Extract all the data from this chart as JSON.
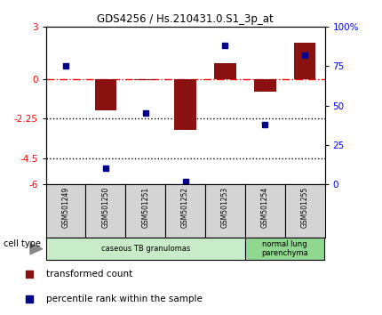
{
  "title": "GDS4256 / Hs.210431.0.S1_3p_at",
  "samples": [
    "GSM501249",
    "GSM501250",
    "GSM501251",
    "GSM501252",
    "GSM501253",
    "GSM501254",
    "GSM501255"
  ],
  "transformed_count": [
    0.02,
    -1.8,
    -0.05,
    -2.9,
    0.9,
    -0.7,
    2.1
  ],
  "percentile_rank": [
    75,
    10,
    45,
    2,
    88,
    38,
    82
  ],
  "ylim_left": [
    -6,
    3
  ],
  "ylim_right": [
    0,
    100
  ],
  "yticks_left": [
    3,
    0,
    -2.25,
    -4.5,
    -6
  ],
  "ytick_labels_left": [
    "3",
    "0",
    "-2.25",
    "-4.5",
    "-6"
  ],
  "yticks_right": [
    100,
    75,
    50,
    25,
    0
  ],
  "ytick_labels_right": [
    "100%",
    "75",
    "50",
    "25",
    "0"
  ],
  "dotted_lines": [
    -2.25,
    -4.5
  ],
  "bar_color": "#8B1010",
  "dot_color": "#00008B",
  "bar_width": 0.55,
  "cell_type_groups": [
    {
      "label": "caseous TB granulomas",
      "start": 0,
      "end": 5,
      "color": "#c8ecc8"
    },
    {
      "label": "normal lung\nparenchyma",
      "start": 5,
      "end": 7,
      "color": "#90d890"
    }
  ],
  "legend_labels": [
    "transformed count",
    "percentile rank within the sample"
  ],
  "cell_type_label": "cell type",
  "background_color": "#ffffff"
}
